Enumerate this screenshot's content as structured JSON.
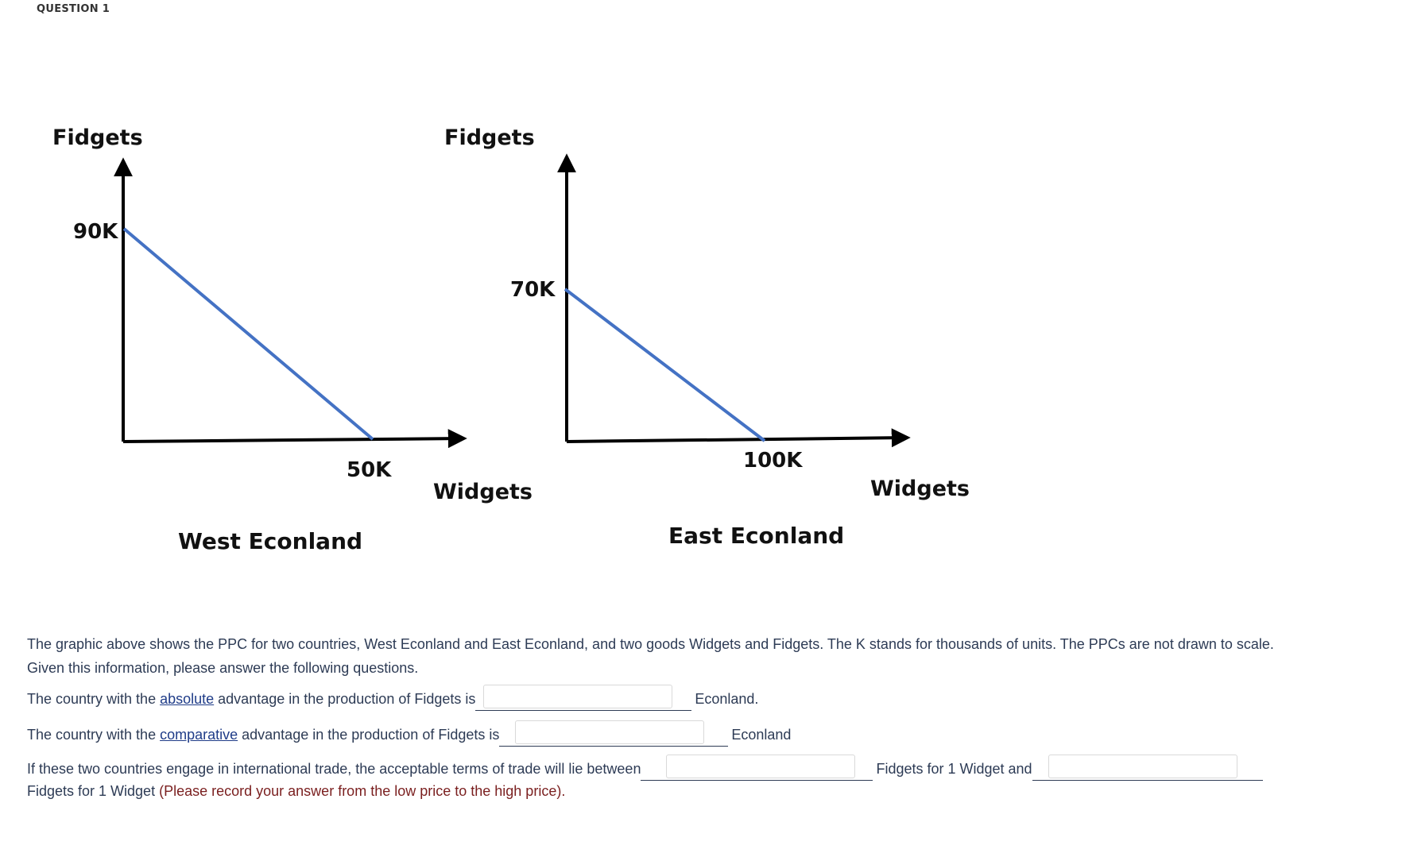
{
  "question": {
    "label": "QUESTION 1"
  },
  "graphic": {
    "west": {
      "country": "West Econland",
      "y_axis_label": "Fidgets",
      "x_axis_label": "Widgets",
      "y_intercept_label": "90K",
      "x_intercept_label": "50K",
      "fidgets_max_k": 90,
      "widgets_max_k": 50
    },
    "east": {
      "country": "East Econland",
      "y_axis_label": "Fidgets",
      "x_axis_label": "Widgets",
      "y_intercept_label": "70K",
      "x_intercept_label": "100K",
      "fidgets_max_k": 70,
      "widgets_max_k": 100
    },
    "colors": {
      "ppc_line": "#4472c4",
      "axis": "#000000"
    }
  },
  "description": {
    "line1": "The graphic above shows the PPC for two countries, West Econland and East Econland, and two goods Widgets and Fidgets.  The K stands for thousands of units. The PPCs are not drawn to scale.",
    "line2": "Given this information, please answer the following questions."
  },
  "q_absolute": {
    "prefix": "The country with the ",
    "keyword": "absolute",
    "middle": " advantage in the production of Fidgets is",
    "suffix": "Econland.",
    "value": ""
  },
  "q_comparative": {
    "prefix": "The country with the ",
    "keyword": "comparative",
    "middle": " advantage in the production of Fidgets is",
    "suffix": "Econland",
    "value": ""
  },
  "q_terms": {
    "prefix": "If these two countries engage in international trade, the acceptable terms of trade will lie between",
    "middle": "Fidgets for 1 Widget and",
    "line2_text": "Fidgets for 1 Widget",
    "note": "(Please record your answer from the low price to the high price).",
    "low_value": "",
    "high_value": ""
  }
}
